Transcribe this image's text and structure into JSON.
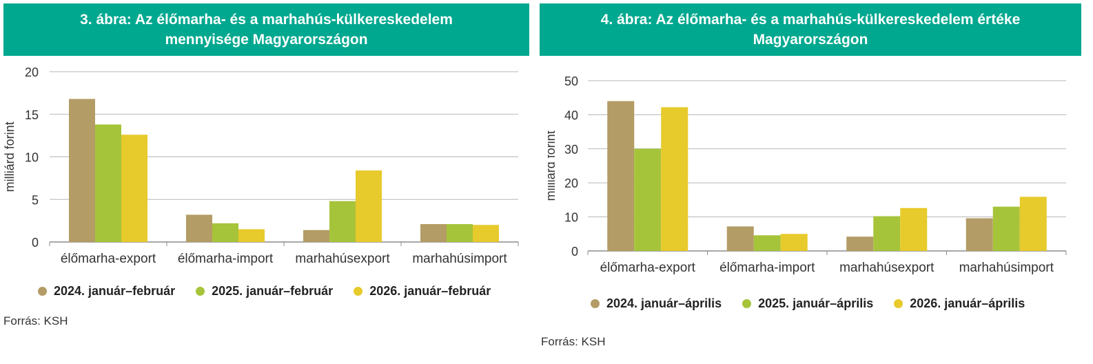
{
  "chart_data": [
    {
      "type": "bar",
      "title": "3. ábra: Az élőmarha- és a marhahús-külkereskedelem\nmennyisége Magyarországon",
      "ylabel": "milliárd forint",
      "ylim": [
        0,
        20
      ],
      "yticks": [
        0,
        5,
        10,
        15,
        20
      ],
      "grid": true,
      "legend_position": "bottom",
      "categories": [
        "élőmarha-export",
        "élőmarha-import",
        "marhahúsexport",
        "marhahúsimport"
      ],
      "series": [
        {
          "name": "2024. január–február",
          "color": "#b39c65",
          "values": [
            16.8,
            3.2,
            1.4,
            2.1
          ]
        },
        {
          "name": "2025. január–február",
          "color": "#a6c43a",
          "values": [
            13.8,
            2.2,
            4.8,
            2.1
          ]
        },
        {
          "name": "2026. január–február",
          "color": "#e7ca2b",
          "values": [
            12.6,
            1.5,
            8.4,
            2.0
          ]
        }
      ],
      "source": "Forrás: KSH"
    },
    {
      "type": "bar",
      "title": "4. ábra: Az élőmarha- és a marhahús-külkereskedelem értéke\nMagyarországon",
      "ylabel": "milliárd forint",
      "ylim": [
        0,
        50
      ],
      "yticks": [
        0,
        10,
        20,
        30,
        40,
        50
      ],
      "grid": true,
      "legend_position": "bottom",
      "categories": [
        "élőmarha-export",
        "élőmarha-import",
        "marhahúsexport",
        "marhahúsimport"
      ],
      "series": [
        {
          "name": "2024. január–április",
          "color": "#b39c65",
          "values": [
            44.0,
            7.2,
            4.2,
            9.6
          ]
        },
        {
          "name": "2025. január–április",
          "color": "#a6c43a",
          "values": [
            30.0,
            4.6,
            10.2,
            13.0
          ]
        },
        {
          "name": "2026. január–április",
          "color": "#e7ca2b",
          "values": [
            42.2,
            5.0,
            12.6,
            15.9
          ]
        }
      ],
      "source": "Forrás: KSH"
    }
  ]
}
